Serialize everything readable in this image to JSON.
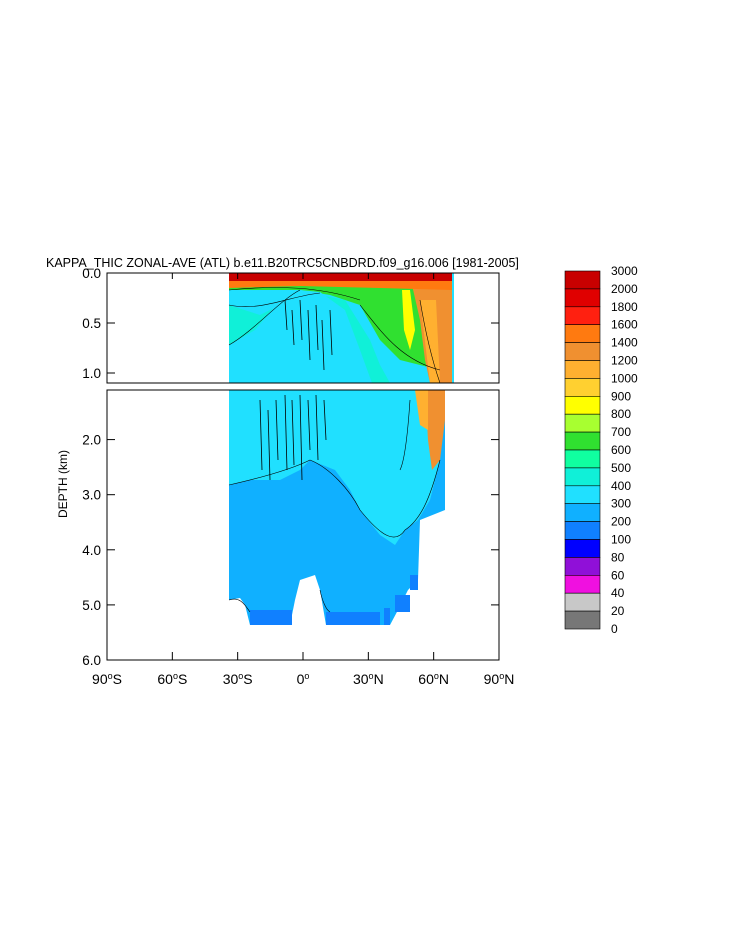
{
  "chart_data": {
    "type": "heatmap",
    "title": "KAPPA_THIC ZONAL-AVE (ATL) b.e11.B20TRC5CNBDRD.f09_g16.006 [1981-2005]",
    "ylabel": "DEPTH (km)",
    "xlim": [
      -90,
      90
    ],
    "ylim": [
      0,
      6
    ],
    "x_ticks": [
      {
        "value": -90,
        "label": "90°S",
        "num": "90",
        "hemi": "S"
      },
      {
        "value": -60,
        "label": "60°S",
        "num": "60",
        "hemi": "S"
      },
      {
        "value": -30,
        "label": "30°S",
        "num": "30",
        "hemi": "S"
      },
      {
        "value": 0,
        "label": "0°",
        "num": "0",
        "hemi": ""
      },
      {
        "value": 30,
        "label": "30°N",
        "num": "30",
        "hemi": "N"
      },
      {
        "value": 60,
        "label": "60°N",
        "num": "60",
        "hemi": "N"
      },
      {
        "value": 90,
        "label": "90°N",
        "num": "90",
        "hemi": "N"
      }
    ],
    "upper_panel": {
      "depth_range": [
        0,
        1.1
      ],
      "y_ticks": [
        {
          "value": 0,
          "label": "0.0"
        },
        {
          "value": 0.5,
          "label": "0.5"
        },
        {
          "value": 1.0,
          "label": "1.0"
        }
      ]
    },
    "lower_panel": {
      "depth_range": [
        1.1,
        6.0
      ],
      "y_ticks": [
        {
          "value": 2,
          "label": "2.0"
        },
        {
          "value": 3,
          "label": "3.0"
        },
        {
          "value": 4,
          "label": "4.0"
        },
        {
          "value": 5,
          "label": "5.0"
        },
        {
          "value": 6,
          "label": "6.0"
        }
      ]
    },
    "colorbar": {
      "levels": [
        "3000",
        "2000",
        "1800",
        "1600",
        "1400",
        "1200",
        "1000",
        "900",
        "800",
        "700",
        "600",
        "500",
        "400",
        "300",
        "200",
        "100",
        "80",
        "60",
        "40",
        "20",
        "0"
      ],
      "colors": [
        "#c80000",
        "#e00000",
        "#ff2010",
        "#ff7a10",
        "#f09030",
        "#ffb030",
        "#ffd030",
        "#ffff00",
        "#a8ff30",
        "#30e030",
        "#10ffa0",
        "#10f0d8",
        "#20e0ff",
        "#10b0ff",
        "#1080ff",
        "#0000ff",
        "#9010d8",
        "#f010e0",
        "#c8c8c8",
        "#777777"
      ]
    },
    "fields": {
      "surface_max": 3000,
      "upper_ocean_sample": [
        {
          "lat": -35,
          "depth": 0.05,
          "value": 3000
        },
        {
          "lat": -30,
          "depth": 0.3,
          "value": 600
        },
        {
          "lat": 0,
          "depth": 0.3,
          "value": 400
        },
        {
          "lat": 40,
          "depth": 0.4,
          "value": 700
        },
        {
          "lat": 62,
          "depth": 0.5,
          "value": 1600
        }
      ],
      "deep_ocean_sample": [
        {
          "lat": 0,
          "depth": 2.5,
          "value": 300
        },
        {
          "lat": 20,
          "depth": 4.5,
          "value": 200
        },
        {
          "lat": 60,
          "depth": 2.0,
          "value": 1400
        }
      ]
    }
  }
}
